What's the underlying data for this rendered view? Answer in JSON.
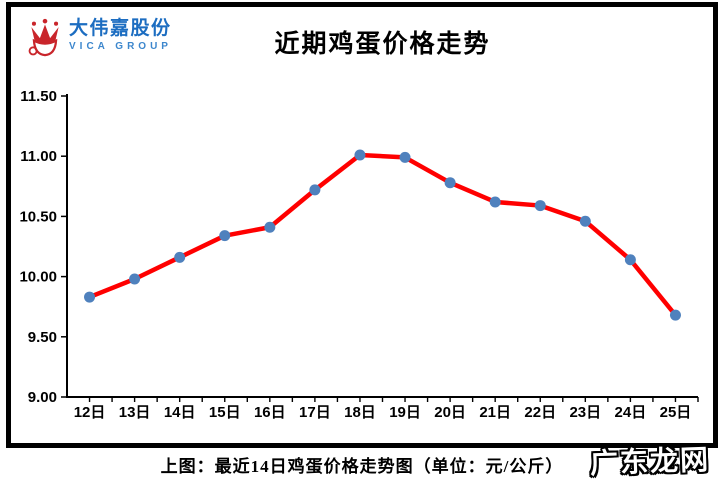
{
  "logo": {
    "company_name": "大伟嘉股份",
    "company_sub": "VICA GROUP"
  },
  "header": {
    "title": "近期鸡蛋价格走势"
  },
  "caption": "上图：最近14日鸡蛋价格走势图（单位：元/公斤）",
  "watermark": "广东龙网",
  "colors": {
    "line": "#ff0000",
    "marker": "#4f81bd",
    "axis": "#000000",
    "logo_blue": "#1c6dc1",
    "logo_light_blue": "#3d87cd",
    "logo_red": "#c9252b"
  },
  "chart_data": {
    "type": "line",
    "title": "近期鸡蛋价格走势",
    "categories": [
      "12日",
      "13日",
      "14日",
      "15日",
      "16日",
      "17日",
      "18日",
      "19日",
      "20日",
      "21日",
      "22日",
      "23日",
      "24日",
      "25日"
    ],
    "values": [
      9.83,
      9.98,
      10.16,
      10.34,
      10.41,
      10.72,
      11.01,
      10.99,
      10.78,
      10.62,
      10.59,
      10.46,
      10.14,
      9.68
    ],
    "xlabel": "",
    "ylabel": "",
    "ylim": [
      9.0,
      11.5
    ],
    "ytick_step": 0.5,
    "ytick_labels": [
      "9.00",
      "9.50",
      "10.00",
      "10.50",
      "11.00",
      "11.50"
    ],
    "grid": false,
    "legend": "none",
    "series_name": "鸡蛋价格",
    "unit": "元/公斤"
  }
}
